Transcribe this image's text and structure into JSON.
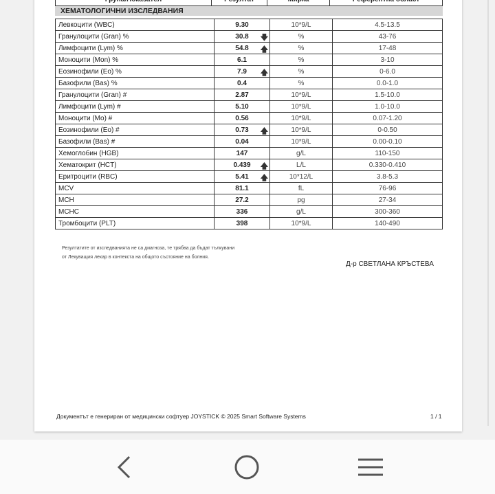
{
  "table": {
    "headers": [
      "Група/Показател",
      "Резултат",
      "Мярка",
      "Референтна област"
    ],
    "section": "ХЕМАТОЛОГИЧНИ ИЗСЛЕДВАНИЯ",
    "rows": [
      {
        "name": "Левкоцити (WBC)",
        "result": "9.30",
        "flag": "",
        "unit": "10*9/L",
        "ref": "4.5-13.5"
      },
      {
        "name": "Гранулоцити (Gran) %",
        "result": "30.8",
        "flag": "down",
        "unit": "%",
        "ref": "43-76"
      },
      {
        "name": "Лимфоцити (Lym) %",
        "result": "54.8",
        "flag": "up",
        "unit": "%",
        "ref": "17-48"
      },
      {
        "name": "Моноцити (Mon) %",
        "result": "6.1",
        "flag": "",
        "unit": "%",
        "ref": "3-10"
      },
      {
        "name": "Еозинофили (Eo) %",
        "result": "7.9",
        "flag": "up",
        "unit": "%",
        "ref": "0-6.0"
      },
      {
        "name": "Базофили (Bas) %",
        "result": "0.4",
        "flag": "",
        "unit": "%",
        "ref": "0.0-1.0"
      },
      {
        "name": "Гранулоцити (Gran) #",
        "result": "2.87",
        "flag": "",
        "unit": "10*9/L",
        "ref": "1.5-10.0"
      },
      {
        "name": "Лимфоцити (Lym) #",
        "result": "5.10",
        "flag": "",
        "unit": "10*9/L",
        "ref": "1.0-10.0"
      },
      {
        "name": "Моноцити (Mo) #",
        "result": "0.56",
        "flag": "",
        "unit": "10*9/L",
        "ref": "0.07-1.20"
      },
      {
        "name": "Еозинофили (Eo) #",
        "result": "0.73",
        "flag": "up",
        "unit": "10*9/L",
        "ref": "0-0.50"
      },
      {
        "name": "Базофили (Bas) #",
        "result": "0.04",
        "flag": "",
        "unit": "10*9/L",
        "ref": "0.00-0.10"
      },
      {
        "name": "Хемоглобин (HGB)",
        "result": "147",
        "flag": "",
        "unit": "g/L",
        "ref": "110-150"
      },
      {
        "name": "Хематокрит (HCT)",
        "result": "0.439",
        "flag": "up",
        "unit": "L/L",
        "ref": "0.330-0.410"
      },
      {
        "name": "Еритроцити (RBC)",
        "result": "5.41",
        "flag": "up",
        "unit": "10*12/L",
        "ref": "3.8-5.3"
      },
      {
        "name": "MCV",
        "result": "81.1",
        "flag": "",
        "unit": "fL",
        "ref": "76-96"
      },
      {
        "name": "MCH",
        "result": "27.2",
        "flag": "",
        "unit": "pg",
        "ref": "27-34"
      },
      {
        "name": "MCHC",
        "result": "336",
        "flag": "",
        "unit": "g/L",
        "ref": "300-360"
      },
      {
        "name": "Тромбоцити (PLT)",
        "result": "398",
        "flag": "",
        "unit": "10*9/L",
        "ref": "140-490"
      }
    ]
  },
  "note": [
    "Резултатите от изследванията не са диагноза, те трябва да бъдат тълкувани",
    "от Лекуващия лекар в контекста на общото състояние на болния."
  ],
  "doctor": "Д-р СВЕТЛАНА КРЪСТЕВА",
  "footer": "Документът е генериран от медицински софтуер JOYSTICK © 2025 Smart Software Systems",
  "page_number": "1 / 1",
  "nav": {
    "back_icon": "chevron-left-icon",
    "home_icon": "circle-home-icon",
    "menu_icon": "hamburger-icon"
  }
}
